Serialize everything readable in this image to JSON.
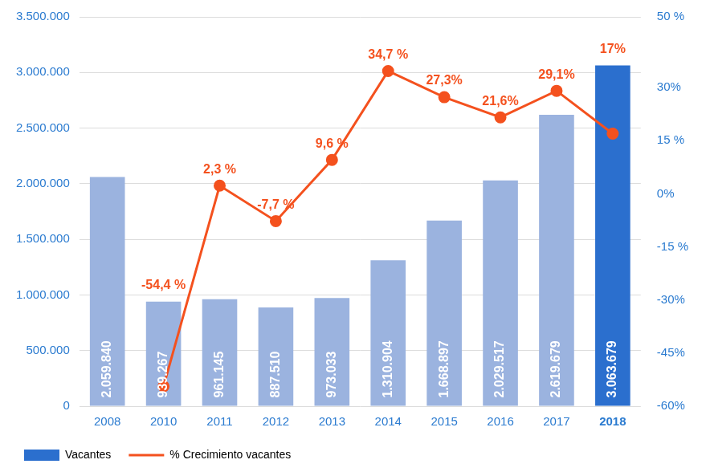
{
  "chart_data": {
    "type": "bar",
    "categories": [
      "2008",
      "2010",
      "2011",
      "2012",
      "2013",
      "2014",
      "2015",
      "2016",
      "2017",
      "2018"
    ],
    "series": [
      {
        "name": "Vacantes",
        "type": "bar",
        "color": "#2b6fce",
        "colors": [
          "#9bb3df",
          "#9bb3df",
          "#9bb3df",
          "#9bb3df",
          "#9bb3df",
          "#9bb3df",
          "#9bb3df",
          "#9bb3df",
          "#9bb3df",
          "#2b6fce"
        ],
        "values": [
          2059840,
          939267,
          961145,
          887510,
          973033,
          1310904,
          1668897,
          2029517,
          2619679,
          3063679
        ],
        "value_labels": [
          "2.059.840",
          "939.267",
          "961.145",
          "887.510",
          "973.033",
          "1.310.904",
          "1.668.897",
          "2.029.517",
          "2.619.679",
          "3.063.679"
        ]
      },
      {
        "name": "% Crecimiento vacantes",
        "type": "line",
        "axis": "y2",
        "color": "#f4511e",
        "marker": "circle",
        "line_style": "solid",
        "values": [
          null,
          -54.4,
          2.3,
          -7.7,
          9.6,
          34.7,
          27.3,
          21.6,
          29.1,
          17
        ],
        "value_labels": [
          null,
          "-54,4 %",
          "2,3 %",
          "-7,7 %",
          "9,6 %",
          "34,7 %",
          "27,3%",
          "21,6%",
          "29,1%",
          "17%"
        ]
      }
    ],
    "ylim": [
      0,
      3500000
    ],
    "yticks": [
      0,
      {
        "value": 500000,
        "label": "500.000"
      },
      {
        "value": 1000000,
        "label": "1.000.000"
      },
      {
        "value": 1500000,
        "label": "1.500.000"
      },
      {
        "value": 2000000,
        "label": "2.000.000"
      },
      {
        "value": 2500000,
        "label": "2.500.000"
      },
      {
        "value": 3000000,
        "label": "3.000.000"
      },
      {
        "value": 3500000,
        "label": "3.500.000"
      }
    ],
    "y2lim": [
      -60,
      50
    ],
    "y2ticks": [
      {
        "value": -60,
        "label": "-60%"
      },
      {
        "value": -45,
        "label": "-45%"
      },
      {
        "value": -30,
        "label": "-30%"
      },
      {
        "value": -15,
        "label": "-15 %"
      },
      {
        "value": 0,
        "label": "0%"
      },
      {
        "value": 15,
        "label": "15 %"
      },
      {
        "value": 30,
        "label": "30%"
      },
      {
        "value": 50,
        "label": "50 %"
      }
    ],
    "grid": true,
    "legend": "bottom-left",
    "data_labels": true
  }
}
